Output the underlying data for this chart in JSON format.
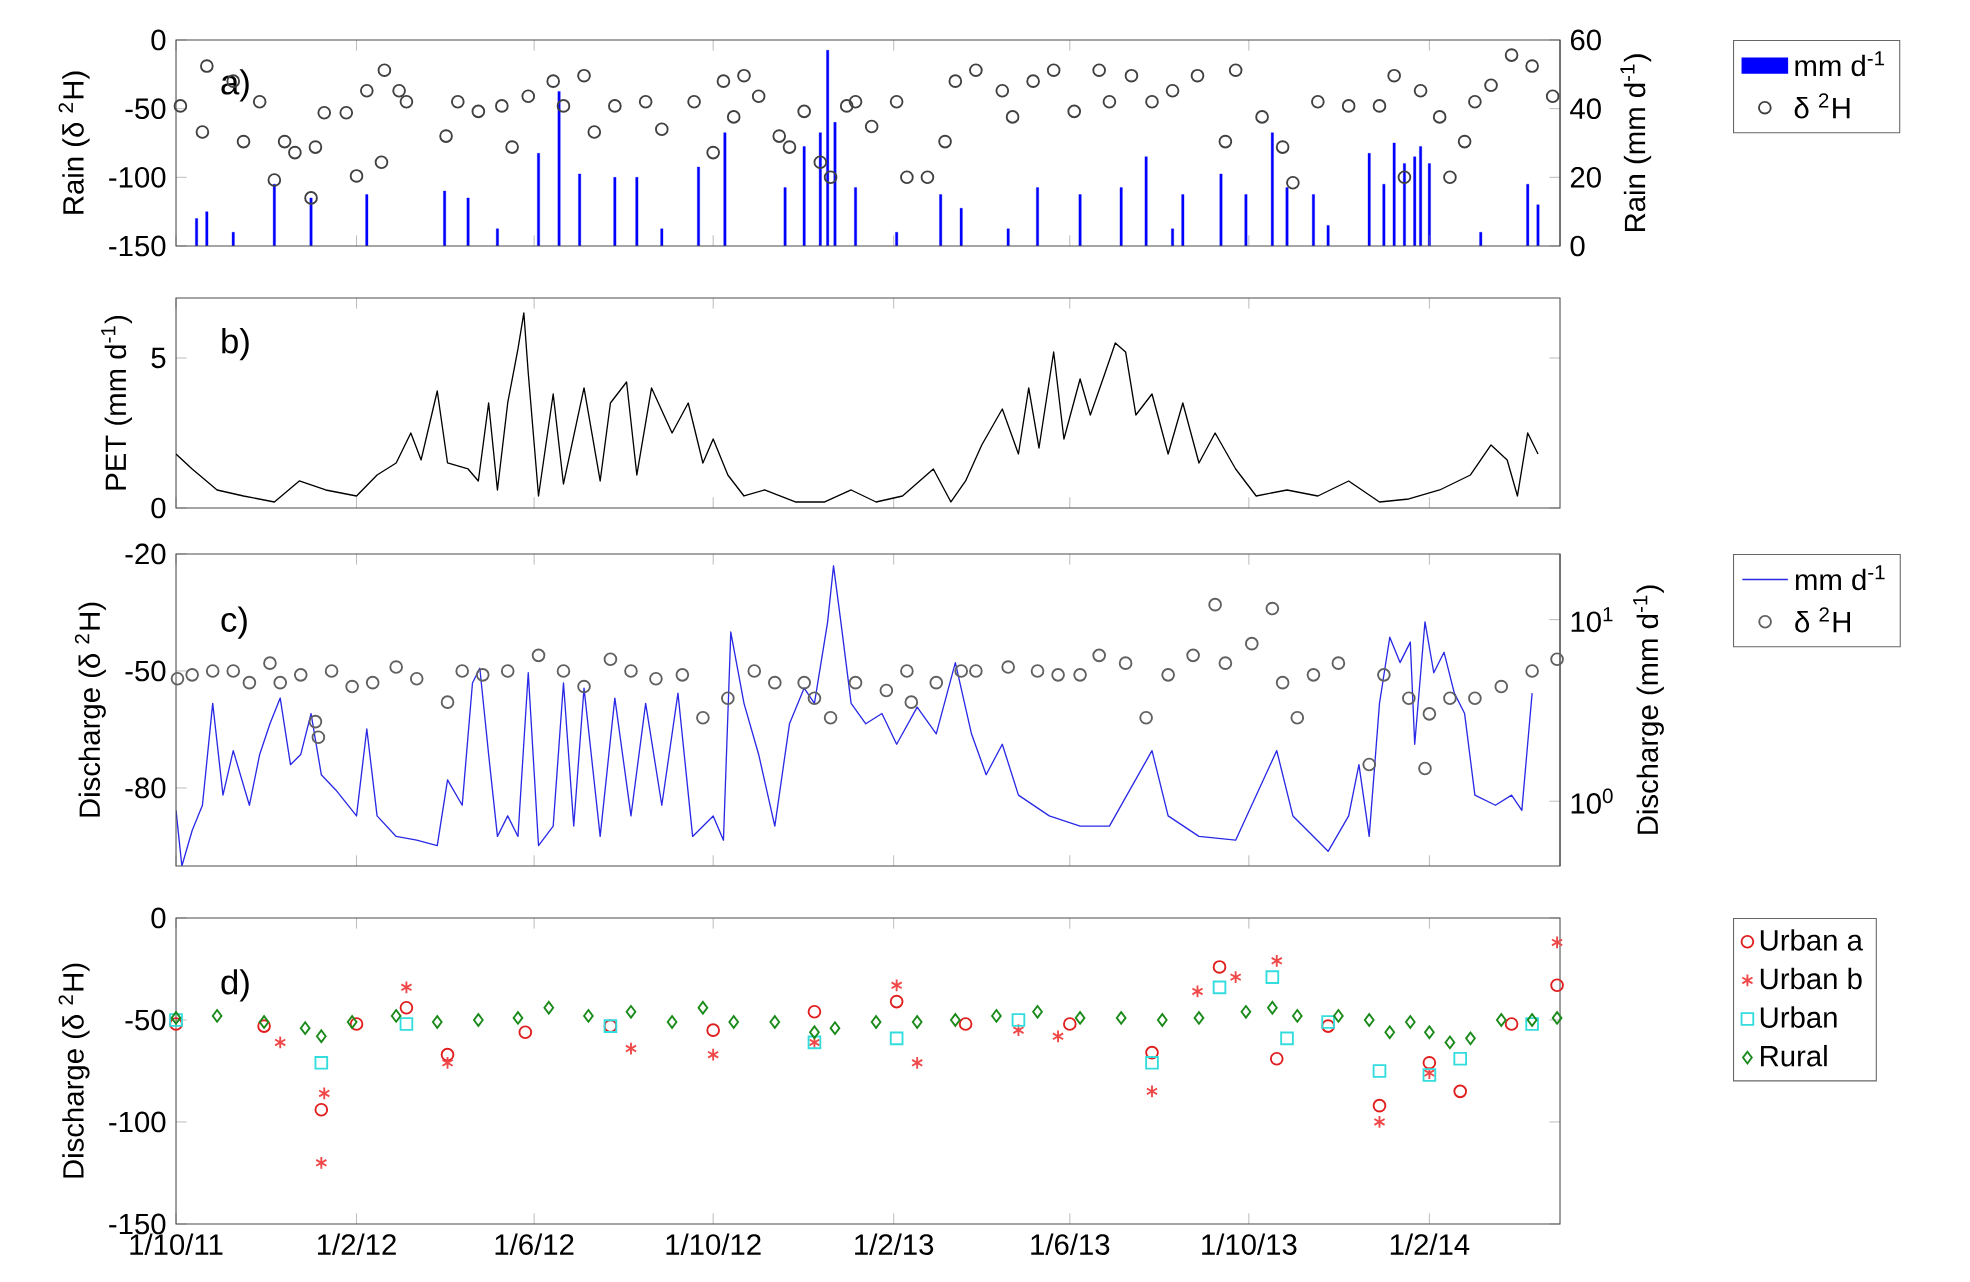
{
  "chart_data": [
    {
      "type": "bar",
      "annotations": [
        "a)"
      ],
      "ylabel": "Rain (δ $^{2}$H)",
      "y2label": "Rain (mm d$^{-1}$)",
      "legend": "right",
      "tick_labels": "y",
      "xlim": [
        "2011-10-01",
        "2014-05-01"
      ],
      "xticks": [
        {
          "value": "2011-10-01",
          "label": null
        },
        {
          "value": "2012-02-01",
          "label": null
        },
        {
          "value": "2012-06-01",
          "label": null
        },
        {
          "value": "2012-10-01",
          "label": null
        },
        {
          "value": "2013-02-01",
          "label": null
        },
        {
          "value": "2013-06-01",
          "label": null
        },
        {
          "value": "2013-10-01",
          "label": null
        },
        {
          "value": "2014-02-01",
          "label": null
        }
      ],
      "ylim": [
        -150,
        0
      ],
      "yticks": [
        -150,
        -100,
        -50,
        0
      ],
      "y2lim": [
        0,
        60
      ],
      "y2ticks": [
        0,
        20,
        40,
        60
      ],
      "series": [
        {
          "name": "mm d$^{-1}$",
          "type": "bar",
          "axis": "y2",
          "color": "#0000ff",
          "x": [
            "2011-10-15",
            "2011-10-22",
            "2011-11-09",
            "2011-12-07",
            "2012-01-01",
            "2012-02-08",
            "2012-04-01",
            "2012-04-17",
            "2012-05-07",
            "2012-06-04",
            "2012-06-18",
            "2012-07-02",
            "2012-07-26",
            "2012-08-10",
            "2012-08-27",
            "2012-09-21",
            "2012-10-09",
            "2012-11-19",
            "2012-12-02",
            "2012-12-13",
            "2012-12-18",
            "2012-12-23",
            "2013-01-06",
            "2013-02-03",
            "2013-03-05",
            "2013-03-19",
            "2013-04-20",
            "2013-05-10",
            "2013-06-08",
            "2013-07-06",
            "2013-07-23",
            "2013-08-10",
            "2013-08-17",
            "2013-09-12",
            "2013-09-29",
            "2013-10-17",
            "2013-10-27",
            "2013-11-14",
            "2013-11-24",
            "2013-12-22",
            "2014-01-01",
            "2014-01-08",
            "2014-01-15",
            "2014-01-22",
            "2014-01-26",
            "2014-02-01",
            "2014-03-08",
            "2014-04-09",
            "2014-04-16"
          ],
          "values": [
            8,
            10,
            4,
            18,
            14,
            15,
            16,
            14,
            5,
            27,
            45,
            21,
            20,
            20,
            5,
            23,
            33,
            17,
            29,
            33,
            57,
            36,
            17,
            4,
            15,
            11,
            5,
            17,
            15,
            17,
            26,
            5,
            15,
            21,
            15,
            33,
            17,
            15,
            6,
            27,
            18,
            30,
            24,
            26,
            29,
            24,
            4,
            18,
            12
          ]
        },
        {
          "name": "δ $^{2}$H",
          "type": "scatter",
          "marker": "circle",
          "color": "#404040",
          "x": [
            "2011-10-04",
            "2011-10-19",
            "2011-10-22",
            "2011-11-09",
            "2011-11-16",
            "2011-11-27",
            "2011-12-07",
            "2011-12-14",
            "2011-12-21",
            "2012-01-01",
            "2012-01-04",
            "2012-01-10",
            "2012-01-25",
            "2012-02-01",
            "2012-02-08",
            "2012-02-18",
            "2012-02-20",
            "2012-03-01",
            "2012-03-06",
            "2012-04-02",
            "2012-04-10",
            "2012-04-24",
            "2012-05-10",
            "2012-05-17",
            "2012-05-28",
            "2012-06-14",
            "2012-06-21",
            "2012-07-05",
            "2012-07-12",
            "2012-07-26",
            "2012-08-16",
            "2012-08-27",
            "2012-09-18",
            "2012-10-01",
            "2012-10-08",
            "2012-10-15",
            "2012-10-22",
            "2012-11-01",
            "2012-11-15",
            "2012-11-22",
            "2012-12-02",
            "2012-12-13",
            "2012-12-20",
            "2012-12-31",
            "2013-01-06",
            "2013-01-17",
            "2013-02-03",
            "2013-02-10",
            "2013-02-24",
            "2013-03-08",
            "2013-03-15",
            "2013-03-29",
            "2013-04-16",
            "2013-04-23",
            "2013-05-07",
            "2013-05-21",
            "2013-06-04",
            "2013-06-21",
            "2013-06-28",
            "2013-07-13",
            "2013-07-27",
            "2013-08-10",
            "2013-08-27",
            "2013-09-15",
            "2013-09-22",
            "2013-10-10",
            "2013-10-24",
            "2013-10-31",
            "2013-11-17",
            "2013-12-08",
            "2013-12-29",
            "2014-01-08",
            "2014-01-15",
            "2014-01-26",
            "2014-02-08",
            "2014-02-15",
            "2014-02-25",
            "2014-03-04",
            "2014-03-15",
            "2014-03-29",
            "2014-04-12",
            "2014-04-26"
          ],
          "values": [
            -48,
            -67,
            -19,
            -30,
            -74,
            -45,
            -102,
            -74,
            -82,
            -115,
            -78,
            -53,
            -53,
            -99,
            -37,
            -89,
            -22,
            -37,
            -45,
            -70,
            -45,
            -52,
            -48,
            -78,
            -41,
            -30,
            -48,
            -26,
            -67,
            -48,
            -45,
            -65,
            -45,
            -82,
            -30,
            -56,
            -26,
            -41,
            -70,
            -78,
            -52,
            -89,
            -100,
            -48,
            -45,
            -63,
            -45,
            -100,
            -100,
            -74,
            -30,
            -22,
            -37,
            -56,
            -30,
            -22,
            -52,
            -22,
            -45,
            -26,
            -45,
            -37,
            -26,
            -74,
            -22,
            -56,
            -78,
            -104,
            -45,
            -48,
            -48,
            -26,
            -100,
            -37,
            -56,
            -100,
            -74,
            -45,
            -33,
            -11,
            -19,
            -41
          ]
        }
      ]
    },
    {
      "type": "line",
      "annotations": [
        "b)"
      ],
      "ylabel": "PET (mm d$^{-1}$)",
      "tick_labels": "y",
      "xlim": [
        "2011-10-01",
        "2014-05-01"
      ],
      "xticks": [
        {
          "value": "2011-10-01",
          "label": null
        },
        {
          "value": "2012-02-01",
          "label": null
        },
        {
          "value": "2012-06-01",
          "label": null
        },
        {
          "value": "2012-10-01",
          "label": null
        },
        {
          "value": "2013-02-01",
          "label": null
        },
        {
          "value": "2013-06-01",
          "label": null
        },
        {
          "value": "2013-10-01",
          "label": null
        },
        {
          "value": "2014-02-01",
          "label": null
        }
      ],
      "ylim": [
        0,
        7
      ],
      "yticks": [
        0,
        5
      ],
      "series": [
        {
          "color": "#000000",
          "x": [
            "2011-10-01",
            "2011-10-12",
            "2011-10-29",
            "2011-11-16",
            "2011-12-07",
            "2011-12-24",
            "2012-01-11",
            "2012-02-01",
            "2012-02-15",
            "2012-02-28",
            "2012-03-09",
            "2012-03-16",
            "2012-03-27",
            "2012-04-03",
            "2012-04-17",
            "2012-04-24",
            "2012-05-01",
            "2012-05-07",
            "2012-05-14",
            "2012-05-21",
            "2012-05-25",
            "2012-05-28",
            "2012-06-04",
            "2012-06-14",
            "2012-06-21",
            "2012-07-05",
            "2012-07-16",
            "2012-07-23",
            "2012-08-03",
            "2012-08-10",
            "2012-08-20",
            "2012-09-03",
            "2012-09-14",
            "2012-09-24",
            "2012-10-01",
            "2012-10-11",
            "2012-10-22",
            "2012-11-05",
            "2012-11-26",
            "2012-12-16",
            "2013-01-03",
            "2013-01-20",
            "2013-02-07",
            "2013-02-28",
            "2013-03-12",
            "2013-03-22",
            "2013-04-02",
            "2013-04-16",
            "2013-04-27",
            "2013-05-04",
            "2013-05-11",
            "2013-05-21",
            "2013-05-28",
            "2013-06-08",
            "2013-06-15",
            "2013-06-25",
            "2013-07-02",
            "2013-07-09",
            "2013-07-16",
            "2013-07-27",
            "2013-08-07",
            "2013-08-17",
            "2013-08-28",
            "2013-09-08",
            "2013-09-22",
            "2013-10-06",
            "2013-10-27",
            "2013-11-17",
            "2013-12-08",
            "2013-12-29",
            "2014-01-18",
            "2014-02-08",
            "2014-03-01",
            "2014-03-15",
            "2014-03-26",
            "2014-04-02",
            "2014-04-09",
            "2014-04-16"
          ],
          "values": [
            1.8,
            1.3,
            0.6,
            0.4,
            0.2,
            0.9,
            0.6,
            0.4,
            1.1,
            1.5,
            2.5,
            1.6,
            3.9,
            1.5,
            1.3,
            0.9,
            3.5,
            0.6,
            3.5,
            5.3,
            6.5,
            4.5,
            0.4,
            3.8,
            0.8,
            4.0,
            0.9,
            3.5,
            4.2,
            1.1,
            4.0,
            2.5,
            3.5,
            1.5,
            2.3,
            1.1,
            0.4,
            0.6,
            0.2,
            0.2,
            0.6,
            0.2,
            0.4,
            1.3,
            0.2,
            0.9,
            2.1,
            3.3,
            1.8,
            4.0,
            2.0,
            5.2,
            2.3,
            4.3,
            3.1,
            4.5,
            5.5,
            5.2,
            3.1,
            3.8,
            1.8,
            3.5,
            1.5,
            2.5,
            1.3,
            0.4,
            0.6,
            0.4,
            0.9,
            0.2,
            0.3,
            0.6,
            1.1,
            2.1,
            1.6,
            0.4,
            2.5,
            1.8
          ]
        }
      ]
    },
    {
      "type": "line",
      "annotations": [
        "c)"
      ],
      "ylabel": "Discharge (δ $^{2}$H)",
      "y2label": "Discharge (mm d$^{-1}$)",
      "legend": "right",
      "tick_labels": "y",
      "log": "y2",
      "xlim": [
        "2011-10-01",
        "2014-05-01"
      ],
      "xticks": [
        {
          "value": "2011-10-01",
          "label": null
        },
        {
          "value": "2012-02-01",
          "label": null
        },
        {
          "value": "2012-06-01",
          "label": null
        },
        {
          "value": "2012-10-01",
          "label": null
        },
        {
          "value": "2013-02-01",
          "label": null
        },
        {
          "value": "2013-06-01",
          "label": null
        },
        {
          "value": "2013-10-01",
          "label": null
        },
        {
          "value": "2014-02-01",
          "label": null
        }
      ],
      "ylim": [
        -100,
        -20
      ],
      "yticks": [
        -80,
        -50,
        -20
      ],
      "y2lim": [
        0.44,
        23
      ],
      "y2ticks": [
        {
          "value": 1,
          "label": "10$^{0}$"
        },
        {
          "value": 10,
          "label": "10$^{1}$"
        }
      ],
      "series": [
        {
          "name": "mm d$^{-1}$",
          "type": "line",
          "axis": "y2",
          "color": "#2a2ae6",
          "x": [
            "2011-10-01",
            "2011-10-05",
            "2011-10-12",
            "2011-10-19",
            "2011-10-26",
            "2011-11-02",
            "2011-11-09",
            "2011-11-20",
            "2011-11-27",
            "2011-12-04",
            "2011-12-11",
            "2011-12-18",
            "2011-12-25",
            "2012-01-01",
            "2012-01-08",
            "2012-01-18",
            "2012-02-01",
            "2012-02-08",
            "2012-02-15",
            "2012-02-28",
            "2012-03-13",
            "2012-03-27",
            "2012-04-03",
            "2012-04-13",
            "2012-04-20",
            "2012-04-25",
            "2012-05-01",
            "2012-05-07",
            "2012-05-14",
            "2012-05-21",
            "2012-05-28",
            "2012-06-04",
            "2012-06-14",
            "2012-06-21",
            "2012-06-28",
            "2012-07-05",
            "2012-07-16",
            "2012-07-26",
            "2012-08-06",
            "2012-08-16",
            "2012-08-27",
            "2012-09-07",
            "2012-09-17",
            "2012-10-01",
            "2012-10-08",
            "2012-10-13",
            "2012-10-22",
            "2012-11-01",
            "2012-11-12",
            "2012-11-22",
            "2012-12-02",
            "2012-12-09",
            "2012-12-18",
            "2012-12-22",
            "2012-12-27",
            "2013-01-03",
            "2013-01-13",
            "2013-01-24",
            "2013-02-03",
            "2013-02-17",
            "2013-03-02",
            "2013-03-15",
            "2013-03-26",
            "2013-04-05",
            "2013-04-16",
            "2013-04-27",
            "2013-05-18",
            "2013-06-08",
            "2013-06-28",
            "2013-07-27",
            "2013-08-07",
            "2013-08-28",
            "2013-09-22",
            "2013-10-20",
            "2013-10-31",
            "2013-11-14",
            "2013-11-24",
            "2013-12-08",
            "2013-12-15",
            "2013-12-22",
            "2013-12-29",
            "2014-01-05",
            "2014-01-12",
            "2014-01-19",
            "2014-01-22",
            "2014-01-29",
            "2014-02-04",
            "2014-02-11",
            "2014-02-18",
            "2014-02-25",
            "2014-03-04",
            "2014-03-18",
            "2014-03-29",
            "2014-04-05",
            "2014-04-12"
          ],
          "values": [
            0.89,
            0.44,
            0.69,
            0.95,
            3.46,
            1.08,
            1.9,
            0.95,
            1.81,
            2.67,
            3.7,
            1.59,
            1.81,
            3.04,
            1.4,
            1.15,
            0.83,
            2.5,
            0.83,
            0.64,
            0.61,
            0.57,
            1.31,
            0.95,
            4.48,
            5.4,
            1.81,
            0.64,
            0.83,
            0.64,
            5.1,
            0.57,
            0.73,
            4.48,
            0.73,
            4.2,
            0.64,
            3.7,
            0.83,
            3.46,
            0.95,
            3.94,
            0.64,
            0.83,
            0.61,
            8.55,
            3.46,
            1.81,
            0.73,
            2.67,
            4.2,
            3.46,
            9.73,
            19.8,
            9.73,
            3.46,
            2.67,
            3.04,
            2.06,
            3.3,
            2.35,
            5.8,
            2.35,
            1.4,
            2.06,
            1.08,
            0.83,
            0.73,
            0.73,
            1.9,
            0.83,
            0.64,
            0.61,
            1.9,
            0.83,
            0.64,
            0.53,
            0.83,
            1.59,
            0.64,
            3.46,
            8.0,
            5.8,
            7.52,
            2.06,
            9.73,
            5.1,
            6.61,
            3.94,
            3.04,
            1.08,
            0.95,
            1.08,
            0.89,
            3.94
          ]
        },
        {
          "name": "δ $^{2}$H",
          "type": "scatter",
          "marker": "circle",
          "color": "#606060",
          "x": [
            "2011-10-02",
            "2011-10-12",
            "2011-10-26",
            "2011-11-09",
            "2011-11-20",
            "2011-12-04",
            "2011-12-11",
            "2011-12-25",
            "2012-01-04",
            "2012-01-06",
            "2012-01-15",
            "2012-01-29",
            "2012-02-12",
            "2012-02-28",
            "2012-03-13",
            "2012-04-03",
            "2012-04-13",
            "2012-04-27",
            "2012-05-14",
            "2012-06-04",
            "2012-06-21",
            "2012-07-05",
            "2012-07-23",
            "2012-08-06",
            "2012-08-23",
            "2012-09-10",
            "2012-09-24",
            "2012-10-11",
            "2012-10-29",
            "2012-11-12",
            "2012-12-02",
            "2012-12-09",
            "2012-12-20",
            "2013-01-06",
            "2013-01-27",
            "2013-02-10",
            "2013-02-13",
            "2013-03-02",
            "2013-03-19",
            "2013-03-29",
            "2013-04-20",
            "2013-05-10",
            "2013-05-24",
            "2013-06-08",
            "2013-06-21",
            "2013-07-09",
            "2013-07-23",
            "2013-08-07",
            "2013-08-24",
            "2013-09-08",
            "2013-09-15",
            "2013-10-03",
            "2013-10-17",
            "2013-10-24",
            "2013-11-03",
            "2013-11-14",
            "2013-12-01",
            "2013-12-22",
            "2014-01-01",
            "2014-01-18",
            "2014-01-29",
            "2014-02-01",
            "2014-02-15",
            "2014-03-04",
            "2014-03-22",
            "2014-04-12",
            "2014-04-29"
          ],
          "values": [
            -52,
            -51,
            -50,
            -50,
            -53,
            -48,
            -53,
            -51,
            -63,
            -67,
            -50,
            -54,
            -53,
            -49,
            -52,
            -58,
            -50,
            -51,
            -50,
            -46,
            -50,
            -54,
            -47,
            -50,
            -52,
            -51,
            -62,
            -57,
            -50,
            -53,
            -53,
            -57,
            -62,
            -53,
            -55,
            -50,
            -58,
            -53,
            -50,
            -50,
            -49,
            -50,
            -51,
            -51,
            -46,
            -48,
            -62,
            -51,
            -46,
            -33,
            -48,
            -43,
            -34,
            -53,
            -62,
            -51,
            -48,
            -74,
            -51,
            -57,
            -75,
            -61,
            -57,
            -57,
            -54,
            -50,
            -47
          ]
        }
      ]
    },
    {
      "type": "scatter",
      "annotations": [
        "d)"
      ],
      "ylabel": "Discharge (δ $^{2}$H)",
      "legend": "right",
      "xlim": [
        "2011-10-01",
        "2014-05-01"
      ],
      "xticks": [
        {
          "value": "2011-10-01",
          "label": "1/10/11"
        },
        {
          "value": "2012-02-01",
          "label": "1/2/12"
        },
        {
          "value": "2012-06-01",
          "label": "1/6/12"
        },
        {
          "value": "2012-10-01",
          "label": "1/10/12"
        },
        {
          "value": "2013-02-01",
          "label": "1/2/13"
        },
        {
          "value": "2013-06-01",
          "label": "1/6/13"
        },
        {
          "value": "2013-10-01",
          "label": "1/10/13"
        },
        {
          "value": "2014-02-01",
          "label": "1/2/14"
        }
      ],
      "ylim": [
        -150,
        0
      ],
      "yticks": [
        -150,
        -100,
        -50,
        0
      ],
      "series": [
        {
          "name": "Urban a",
          "marker": "circle",
          "color": "#e01e1e",
          "x": [
            "2011-10-01",
            "2011-11-30",
            "2012-01-08",
            "2012-02-01",
            "2012-03-06",
            "2012-04-03",
            "2012-05-26",
            "2012-07-23",
            "2012-10-01",
            "2012-12-09",
            "2013-02-03",
            "2013-03-22",
            "2013-06-01",
            "2013-07-27",
            "2013-09-11",
            "2013-10-20",
            "2013-11-24",
            "2013-12-29",
            "2014-02-01",
            "2014-02-22",
            "2014-03-29",
            "2014-04-29"
          ],
          "values": [
            -52,
            -53,
            -94,
            -52,
            -44,
            -67,
            -56,
            -53,
            -55,
            -46,
            -41,
            -52,
            -52,
            -66,
            -24,
            -69,
            -53,
            -92,
            -71,
            -85,
            -52,
            -33
          ]
        },
        {
          "name": "Urban b",
          "marker": "cross",
          "color": "#f04848",
          "x": [
            "2011-12-11",
            "2012-01-08",
            "2012-01-10",
            "2012-03-06",
            "2012-04-03",
            "2012-08-06",
            "2012-10-01",
            "2012-12-09",
            "2013-02-03",
            "2013-02-17",
            "2013-04-27",
            "2013-05-24",
            "2013-07-27",
            "2013-08-27",
            "2013-09-22",
            "2013-10-20",
            "2013-12-29",
            "2014-02-01",
            "2014-04-29"
          ],
          "values": [
            -61,
            -120,
            -86,
            -34,
            -71,
            -64,
            -67,
            -61,
            -33,
            -71,
            -55,
            -58,
            -85,
            -36,
            -29,
            -21,
            -100,
            -76,
            -12
          ]
        },
        {
          "name": "Urban",
          "marker": "square",
          "color": "#33dddd",
          "x": [
            "2011-10-01",
            "2012-01-08",
            "2012-03-06",
            "2012-07-23",
            "2012-12-09",
            "2013-02-03",
            "2013-04-27",
            "2013-07-27",
            "2013-09-11",
            "2013-10-17",
            "2013-10-27",
            "2013-11-24",
            "2013-12-29",
            "2014-02-01",
            "2014-02-22",
            "2014-04-12"
          ],
          "values": [
            -50,
            -71,
            -52,
            -53,
            -61,
            -59,
            -50,
            -71,
            -34,
            -29,
            -59,
            -51,
            -75,
            -77,
            -69,
            -52
          ]
        },
        {
          "name": "Rural",
          "marker": "diamond",
          "color": "#1a8a1a",
          "x": [
            "2011-10-01",
            "2011-10-29",
            "2011-11-30",
            "2011-12-28",
            "2012-01-08",
            "2012-01-29",
            "2012-02-28",
            "2012-03-27",
            "2012-04-24",
            "2012-05-21",
            "2012-06-11",
            "2012-07-08",
            "2012-08-06",
            "2012-09-03",
            "2012-09-24",
            "2012-10-15",
            "2012-11-12",
            "2012-12-09",
            "2012-12-23",
            "2013-01-20",
            "2013-02-17",
            "2013-03-15",
            "2013-04-12",
            "2013-05-10",
            "2013-06-08",
            "2013-07-06",
            "2013-08-03",
            "2013-08-28",
            "2013-09-29",
            "2013-10-17",
            "2013-11-03",
            "2013-12-01",
            "2013-12-22",
            "2014-01-05",
            "2014-01-19",
            "2014-02-01",
            "2014-02-15",
            "2014-03-01",
            "2014-03-22",
            "2014-04-12",
            "2014-04-29"
          ],
          "values": [
            -49,
            -48,
            -51,
            -54,
            -58,
            -51,
            -48,
            -51,
            -50,
            -49,
            -44,
            -48,
            -46,
            -51,
            -44,
            -51,
            -51,
            -56,
            -54,
            -51,
            -51,
            -50,
            -48,
            -46,
            -49,
            -49,
            -50,
            -49,
            -46,
            -44,
            -48,
            -48,
            -50,
            -56,
            -51,
            -56,
            -61,
            -59,
            -50,
            -50,
            -49
          ]
        }
      ]
    }
  ]
}
